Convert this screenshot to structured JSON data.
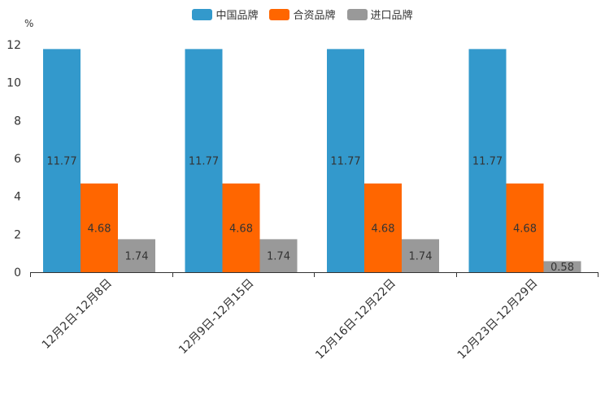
{
  "chart_data": {
    "type": "bar",
    "title": "",
    "ylabel": "%",
    "xlabel": "",
    "ylim": [
      0,
      12
    ],
    "yticks": [
      0,
      2,
      4,
      6,
      8,
      10,
      12
    ],
    "categories": [
      "12月2日-12月8日",
      "12月9日-12月15日",
      "12月16日-12月22日",
      "12月23日-12月29日"
    ],
    "series": [
      {
        "name": "中国品牌",
        "color": "#3399cc",
        "values": [
          11.77,
          11.77,
          11.77,
          11.77
        ]
      },
      {
        "name": "合资品牌",
        "color": "#ff6600",
        "values": [
          4.68,
          4.68,
          4.68,
          4.68
        ]
      },
      {
        "name": "进口品牌",
        "color": "#999999",
        "values": [
          1.74,
          1.74,
          1.74,
          0.58
        ]
      }
    ],
    "legend_position": "top-center",
    "grid": false
  }
}
